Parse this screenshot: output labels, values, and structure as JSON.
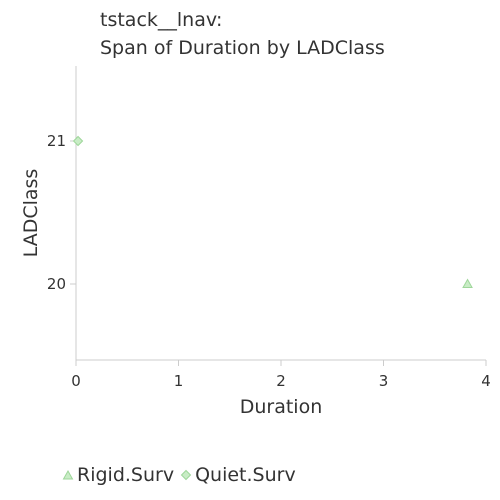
{
  "chart_data": {
    "type": "scatter",
    "title": "tstack__lnav:",
    "subtitle": "Span of Duration by LADClass",
    "xlabel": "Duration",
    "ylabel": "LADClass",
    "xlim": [
      0,
      4
    ],
    "ylim": [
      19.5,
      21.5
    ],
    "x_ticks": [
      "0",
      "1",
      "2",
      "3",
      "4"
    ],
    "y_ticks": [
      "20",
      "21"
    ],
    "grid": false,
    "legend_position": "bottom",
    "series": [
      {
        "name": "Rigid.Surv",
        "marker": "triangle",
        "color": "#9ed69a",
        "points": [
          {
            "x": 3.82,
            "y": 20
          }
        ]
      },
      {
        "name": "Quiet.Surv",
        "marker": "diamond",
        "color": "#9ed69a",
        "points": [
          {
            "x": 0.02,
            "y": 21
          }
        ]
      }
    ]
  }
}
